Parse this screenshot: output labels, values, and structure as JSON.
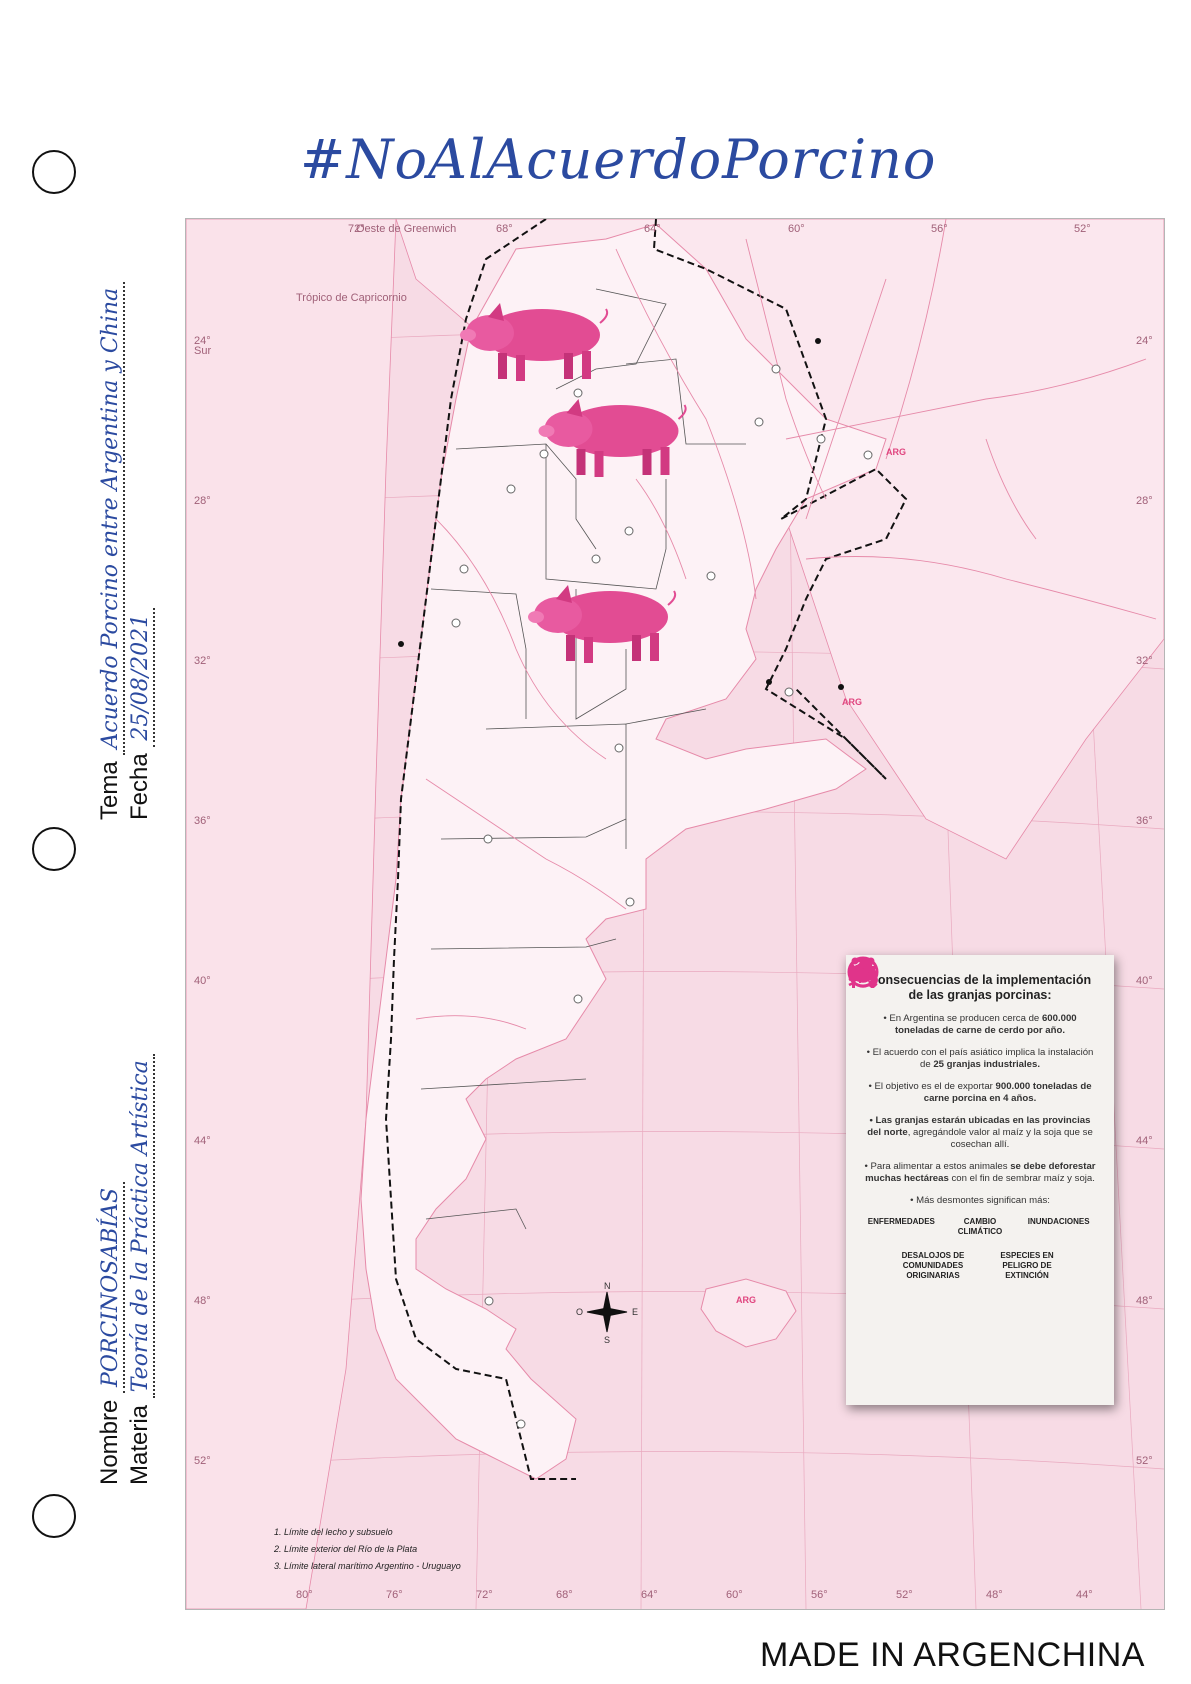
{
  "title": "#NoAlAcuerdoPorcino",
  "fields": {
    "tema_label": "Tema",
    "tema_value": "Acuerdo Porcino entre Argentina y China",
    "fecha_label": "Fecha",
    "fecha_value": "25/08/2021",
    "nombre_label": "Nombre",
    "nombre_value": "PORCINOSABÍAS",
    "materia_label": "Materia",
    "materia_value": "Teoría de la Práctica Artística"
  },
  "map": {
    "greenwich_label": "Oeste de Greenwich",
    "tropic_label": "Trópico de Capricornio",
    "sur_label": "Sur",
    "country_tag": "ARG",
    "top_longitudes": [
      "72°",
      "68°",
      "64°",
      "60°",
      "56°",
      "52°"
    ],
    "bottom_longitudes": [
      "80°",
      "76°",
      "72°",
      "68°",
      "64°",
      "60°",
      "56°",
      "52°",
      "48°",
      "44°"
    ],
    "latitudes": [
      "24°",
      "28°",
      "32°",
      "36°",
      "40°",
      "44°",
      "48°",
      "52°"
    ],
    "compass": {
      "n": "N",
      "s": "S",
      "e": "E",
      "o": "O"
    },
    "notes": [
      "1. Límite del lecho y subsuelo",
      "2. Límite exterior del Río de la Plata",
      "3. Límite lateral marítimo Argentino - Uruguayo"
    ],
    "colors": {
      "ocean": "#f7dbe5",
      "land": "#fdf2f6",
      "rivers": "#e68aa9",
      "pig": "#e24c93"
    }
  },
  "infobox": {
    "heading": "Consecuencias de la implementación de las granjas porcinas:",
    "b1_pre": "• En Argentina se producen cerca de ",
    "b1_bold": "600.000 toneladas de carne de cerdo por año.",
    "b2_pre": "• El acuerdo con el país asiático implica la instalación de ",
    "b2_bold": "25 granjas industriales.",
    "b3_pre": "• El objetivo es el de exportar ",
    "b3_bold": "900.000 toneladas de carne porcina en 4 años.",
    "b4_bold": "• Las granjas estarán ubicadas en las provincias del norte",
    "b4_post": ", agregándole valor al maíz y la soja que se cosechan allí.",
    "b5_pre": "• Para alimentar a estos animales ",
    "b5_bold": "se debe deforestar muchas hectáreas",
    "b5_post": " con el fin de sembrar maíz y soja.",
    "b6": "• Más desmontes significan más:",
    "icons": [
      {
        "icon": "virus-icon",
        "label": "ENFERMEDADES"
      },
      {
        "icon": "globe-thermometer-icon",
        "label": "CAMBIO CLIMÁTICO"
      },
      {
        "icon": "flooded-house-icon",
        "label": "INUNDACIONES"
      },
      {
        "icon": "displaced-people-icon",
        "label": "DESALOJOS DE COMUNIDADES ORIGINARIAS"
      },
      {
        "icon": "no-animals-icon",
        "label": "ESPECIES EN PELIGRO DE EXTINCIÓN"
      }
    ],
    "icon_color": "#e0348a"
  },
  "footer": "MADE IN ARGENCHINA"
}
